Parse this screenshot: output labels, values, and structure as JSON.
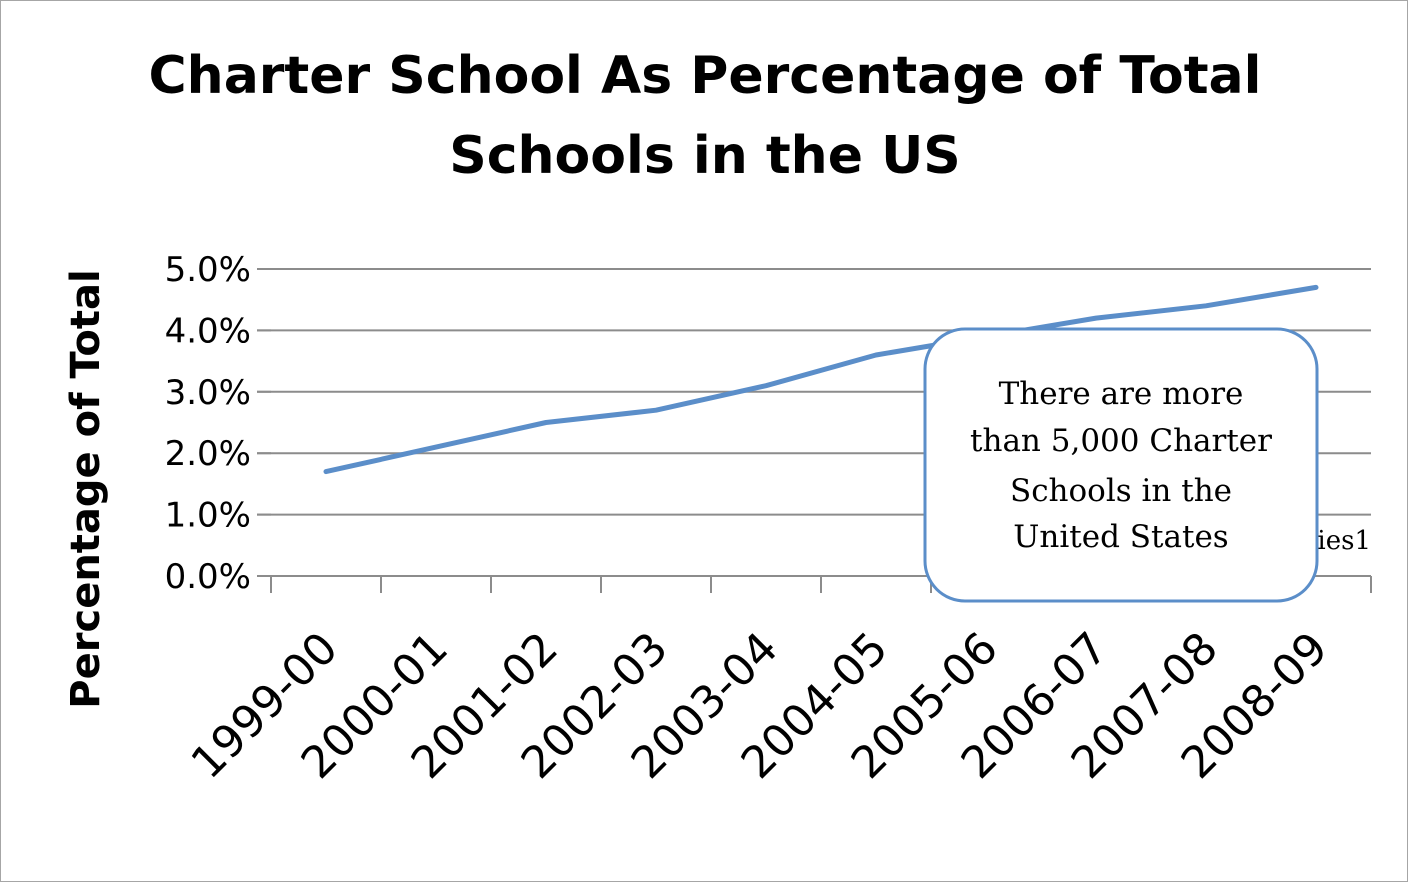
{
  "chart_data": {
    "type": "line",
    "title_lines": [
      "Charter School As Percentage of Total",
      "Schools in the US"
    ],
    "xlabel": "",
    "ylabel": "Percentage of Total",
    "categories": [
      "1999-00",
      "2000-01",
      "2001-02",
      "2002-03",
      "2003-04",
      "2004-05",
      "2005-06",
      "2006-07",
      "2007-08",
      "2008-09"
    ],
    "series": [
      {
        "name": "Series1",
        "values": [
          1.7,
          2.1,
          2.5,
          2.7,
          3.1,
          3.6,
          3.9,
          4.2,
          4.4,
          4.7
        ],
        "color": "#5b8ec9"
      }
    ],
    "ylim": [
      0,
      5
    ],
    "yticks": [
      0,
      1,
      2,
      3,
      4,
      5
    ],
    "ytick_labels": [
      "0.0%",
      "1.0%",
      "2.0%",
      "3.0%",
      "4.0%",
      "5.0%"
    ],
    "grid": true,
    "legend_position": "right",
    "legend_visible_text": "ies1",
    "annotation": {
      "lines": [
        "There are more",
        "than 5,000 Charter",
        "Schools in the",
        "United States"
      ],
      "border_color": "#5b8ec9"
    }
  }
}
